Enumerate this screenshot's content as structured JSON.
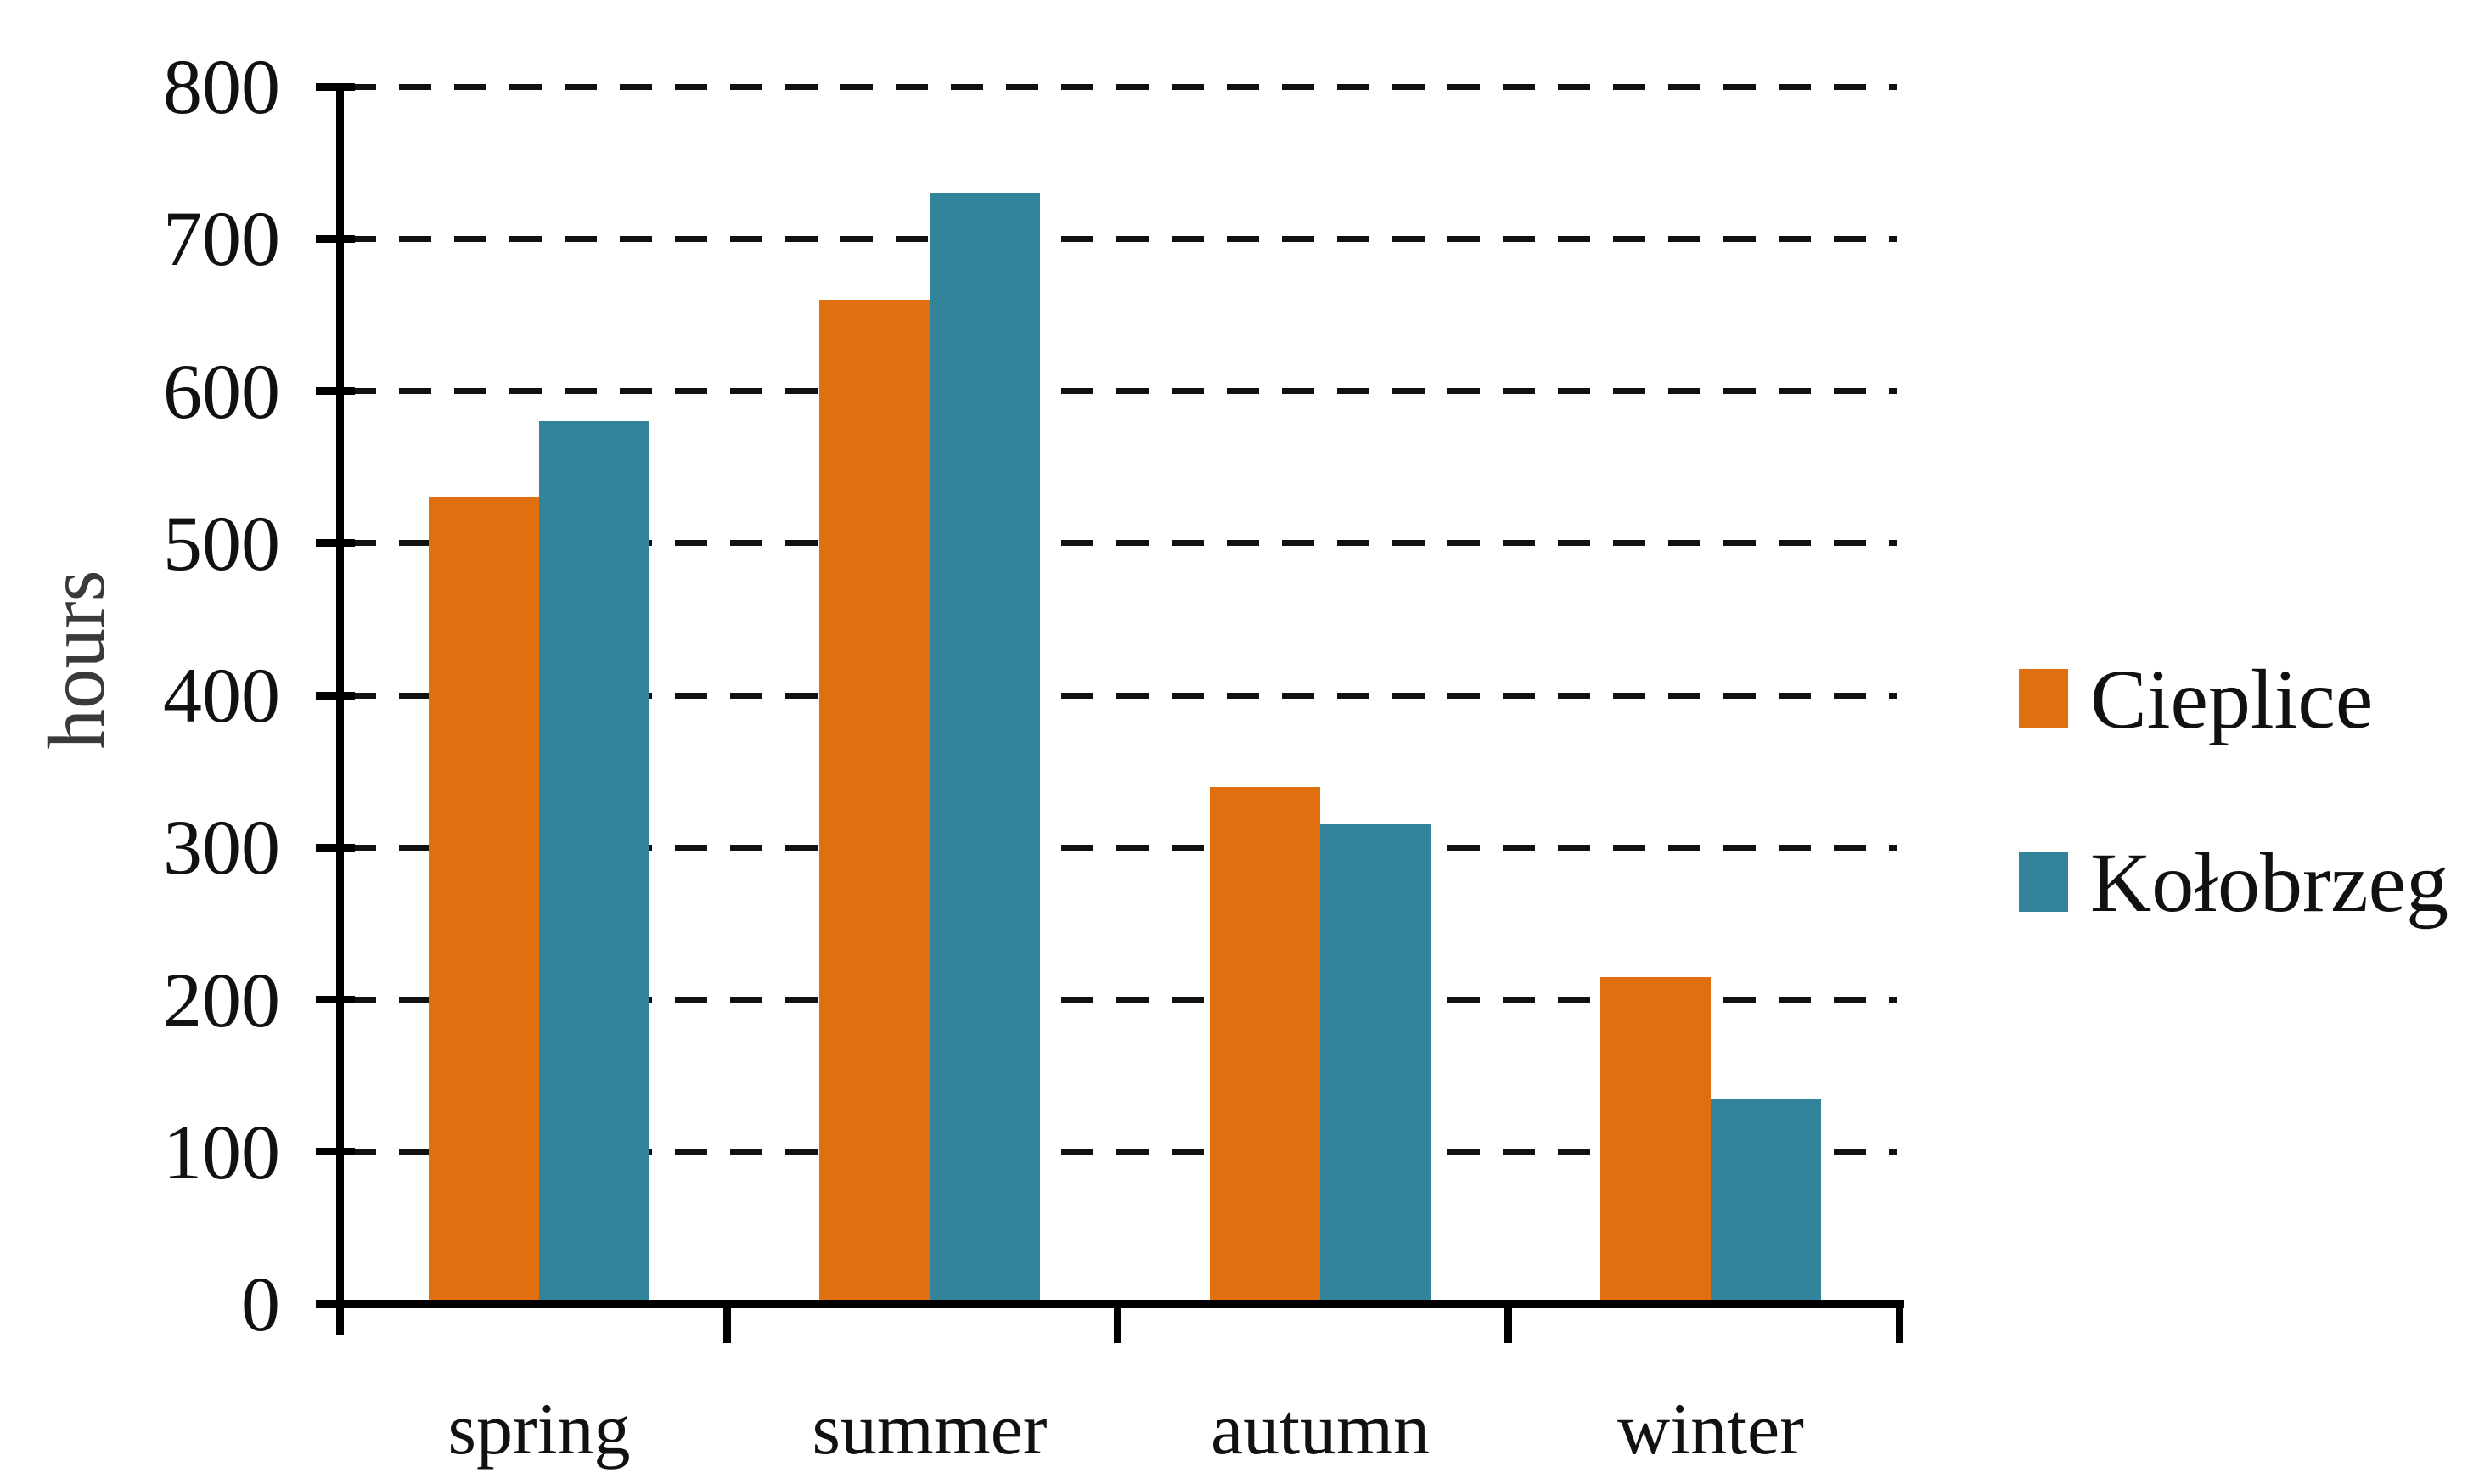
{
  "chart_data": {
    "type": "bar",
    "title": "",
    "ylabel": "hours",
    "categories": [
      "spring",
      "summer",
      "autumn",
      "winter"
    ],
    "series": [
      {
        "name": "Cieplice",
        "color": "#E06F10",
        "values": [
          530,
          660,
          340,
          215
        ]
      },
      {
        "name": "Kołobrzeg",
        "color": "#33839B",
        "values": [
          580,
          730,
          315,
          135
        ]
      }
    ],
    "ylim": [
      0,
      800
    ],
    "ytick_step": 100,
    "yticks": [
      0,
      100,
      200,
      300,
      400,
      500,
      600,
      700,
      800
    ],
    "grid": "horizontal-dashed",
    "legend_position": "right"
  },
  "styles": {
    "background": "#ffffff",
    "axis_color": "#000000",
    "gridline_color": "#111111",
    "text_color": "#111111",
    "ylabel_color": "#3a3a3a"
  }
}
